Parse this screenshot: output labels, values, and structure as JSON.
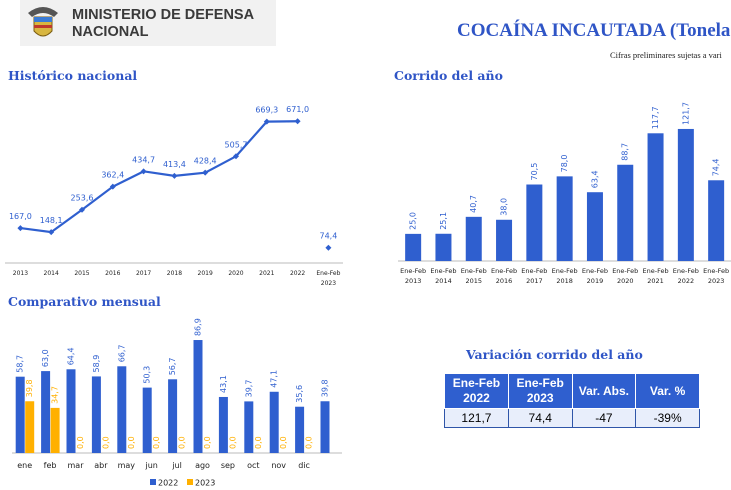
{
  "header": {
    "ministry": "MINISTERIO DE DEFENSA NACIONAL",
    "title": "COCAÍNA INCAUTADA (Toneladas",
    "note": "Cifras preliminares sujetas a vari"
  },
  "colors": {
    "primary": "#2f5fcf",
    "secondary": "#ffb000",
    "heading": "#2f55c6"
  },
  "chart_data": [
    {
      "type": "line",
      "title": "Histórico nacional",
      "categories": [
        "2013",
        "2014",
        "2015",
        "2016",
        "2017",
        "2018",
        "2019",
        "2020",
        "2021",
        "2022",
        "Ene-Feb 2023"
      ],
      "values": [
        167.0,
        148.1,
        253.6,
        362.4,
        434.7,
        413.4,
        428.4,
        505.7,
        669.3,
        671.0,
        74.4
      ],
      "labels": [
        "167,0",
        "148,1",
        "253,6",
        "362,4",
        "434,7",
        "413,4",
        "428,4",
        "505,7",
        "669,3",
        "671,0",
        "74,4"
      ]
    },
    {
      "type": "bar",
      "title": "Corrido del año",
      "categories": [
        "Ene-Feb 2013",
        "Ene-Feb 2014",
        "Ene-Feb 2015",
        "Ene-Feb 2016",
        "Ene-Feb 2017",
        "Ene-Feb 2018",
        "Ene-Feb 2019",
        "Ene-Feb 2020",
        "Ene-Feb 2021",
        "Ene-Feb 2022",
        "Ene-Feb 2023"
      ],
      "values": [
        25.0,
        25.1,
        40.7,
        38.0,
        70.5,
        78.0,
        63.4,
        88.7,
        117.7,
        121.7,
        74.4
      ],
      "labels": [
        "25,0",
        "25,1",
        "40,7",
        "38,0",
        "70,5",
        "78,0",
        "63,4",
        "88,7",
        "117,7",
        "121,7",
        "74,4"
      ]
    },
    {
      "type": "bar",
      "title": "Comparativo mensual",
      "categories": [
        "ene",
        "feb",
        "mar",
        "abr",
        "may",
        "jun",
        "jul",
        "ago",
        "sep",
        "oct",
        "nov",
        "dic",
        ""
      ],
      "legend": "bottom",
      "series": [
        {
          "name": "2022",
          "values": [
            58.7,
            63.0,
            64.4,
            58.9,
            66.7,
            50.3,
            56.7,
            86.9,
            43.1,
            39.7,
            47.1,
            35.6,
            39.8
          ],
          "labels": [
            "58,7",
            "63,0",
            "64,4",
            "58,9",
            "66,7",
            "50,3",
            "56,7",
            "86,9",
            "43,1",
            "39,7",
            "47,1",
            "35,6",
            "39,8"
          ]
        },
        {
          "name": "2023",
          "values": [
            39.8,
            34.7,
            0,
            0,
            0,
            0,
            0,
            0,
            0,
            0,
            0,
            0,
            null
          ],
          "labels": [
            "39,8",
            "34,7",
            "0,0",
            "0,0",
            "0,0",
            "0,0",
            "0,0",
            "0,0",
            "0,0",
            "0,0",
            "0,0",
            "0,0",
            null
          ]
        }
      ]
    }
  ],
  "variation": {
    "title": "Variación corrido del año",
    "headers": [
      "Ene-Feb 2022",
      "Ene-Feb 2023",
      "Var. Abs.",
      "Var. %"
    ],
    "values": [
      "121,7",
      "74,4",
      "-47",
      "-39%"
    ]
  }
}
